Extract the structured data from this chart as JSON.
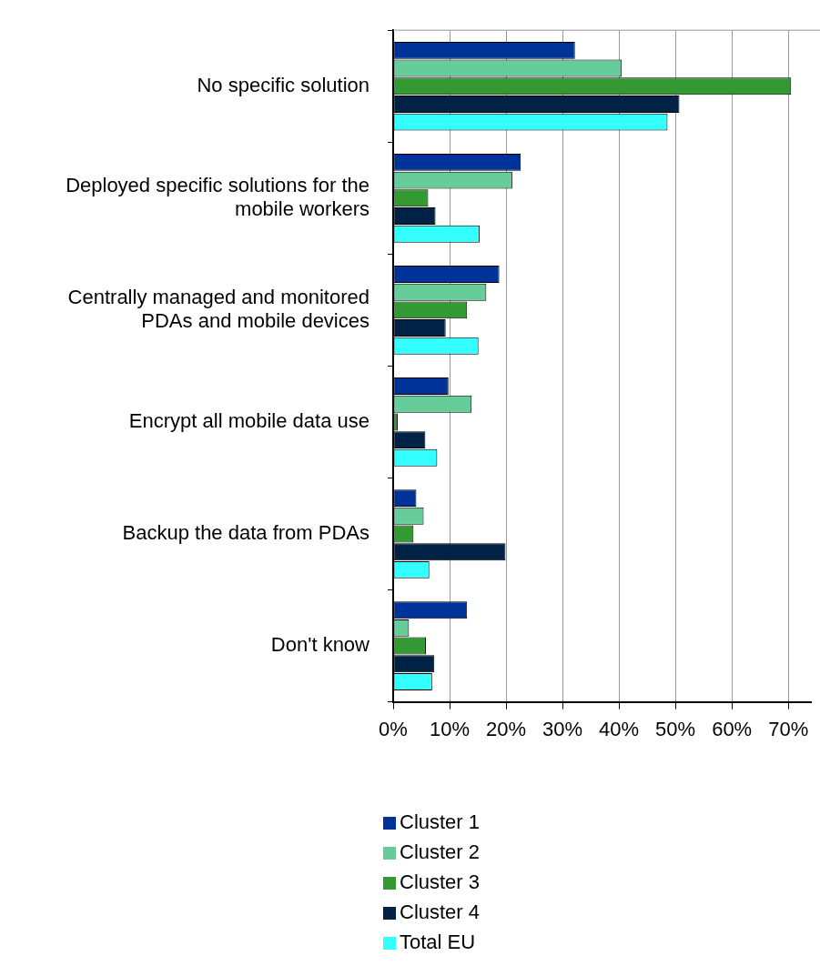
{
  "chart_data": {
    "type": "bar",
    "orientation": "horizontal",
    "categories": [
      "No specific solution",
      "Deployed specific solutions for the\nmobile workers",
      "Centrally managed and monitored\nPDAs and mobile devices",
      "Encrypt all mobile data use",
      "Backup the data from PDAs",
      "Don't know"
    ],
    "series": [
      {
        "name": "Cluster 1",
        "color": "#003399",
        "values": [
          32.2,
          22.6,
          18.8,
          9.8,
          4.1,
          13.1
        ]
      },
      {
        "name": "Cluster 2",
        "color": "#66cc99",
        "values": [
          40.5,
          21.1,
          16.5,
          13.9,
          5.4,
          2.8
        ]
      },
      {
        "name": "Cluster 3",
        "color": "#339933",
        "values": [
          70.5,
          6.2,
          13.1,
          0.8,
          3.6,
          5.8
        ]
      },
      {
        "name": "Cluster 4",
        "color": "#002244",
        "values": [
          50.7,
          7.5,
          9.3,
          5.7,
          19.9,
          7.3
        ]
      },
      {
        "name": "Total EU",
        "color": "#33ffff",
        "values": [
          48.6,
          15.3,
          15.1,
          7.8,
          6.4,
          6.9
        ]
      }
    ],
    "xlim": [
      0,
      74
    ],
    "xticks": [
      {
        "value": 0,
        "label": "0%"
      },
      {
        "value": 10,
        "label": "10%"
      },
      {
        "value": 20,
        "label": "20%"
      },
      {
        "value": 30,
        "label": "30%"
      },
      {
        "value": 40,
        "label": "40%"
      },
      {
        "value": 50,
        "label": "50%"
      },
      {
        "value": 60,
        "label": "60%"
      },
      {
        "value": 70,
        "label": "70%"
      }
    ],
    "grid": "x",
    "legend": "bottom"
  }
}
